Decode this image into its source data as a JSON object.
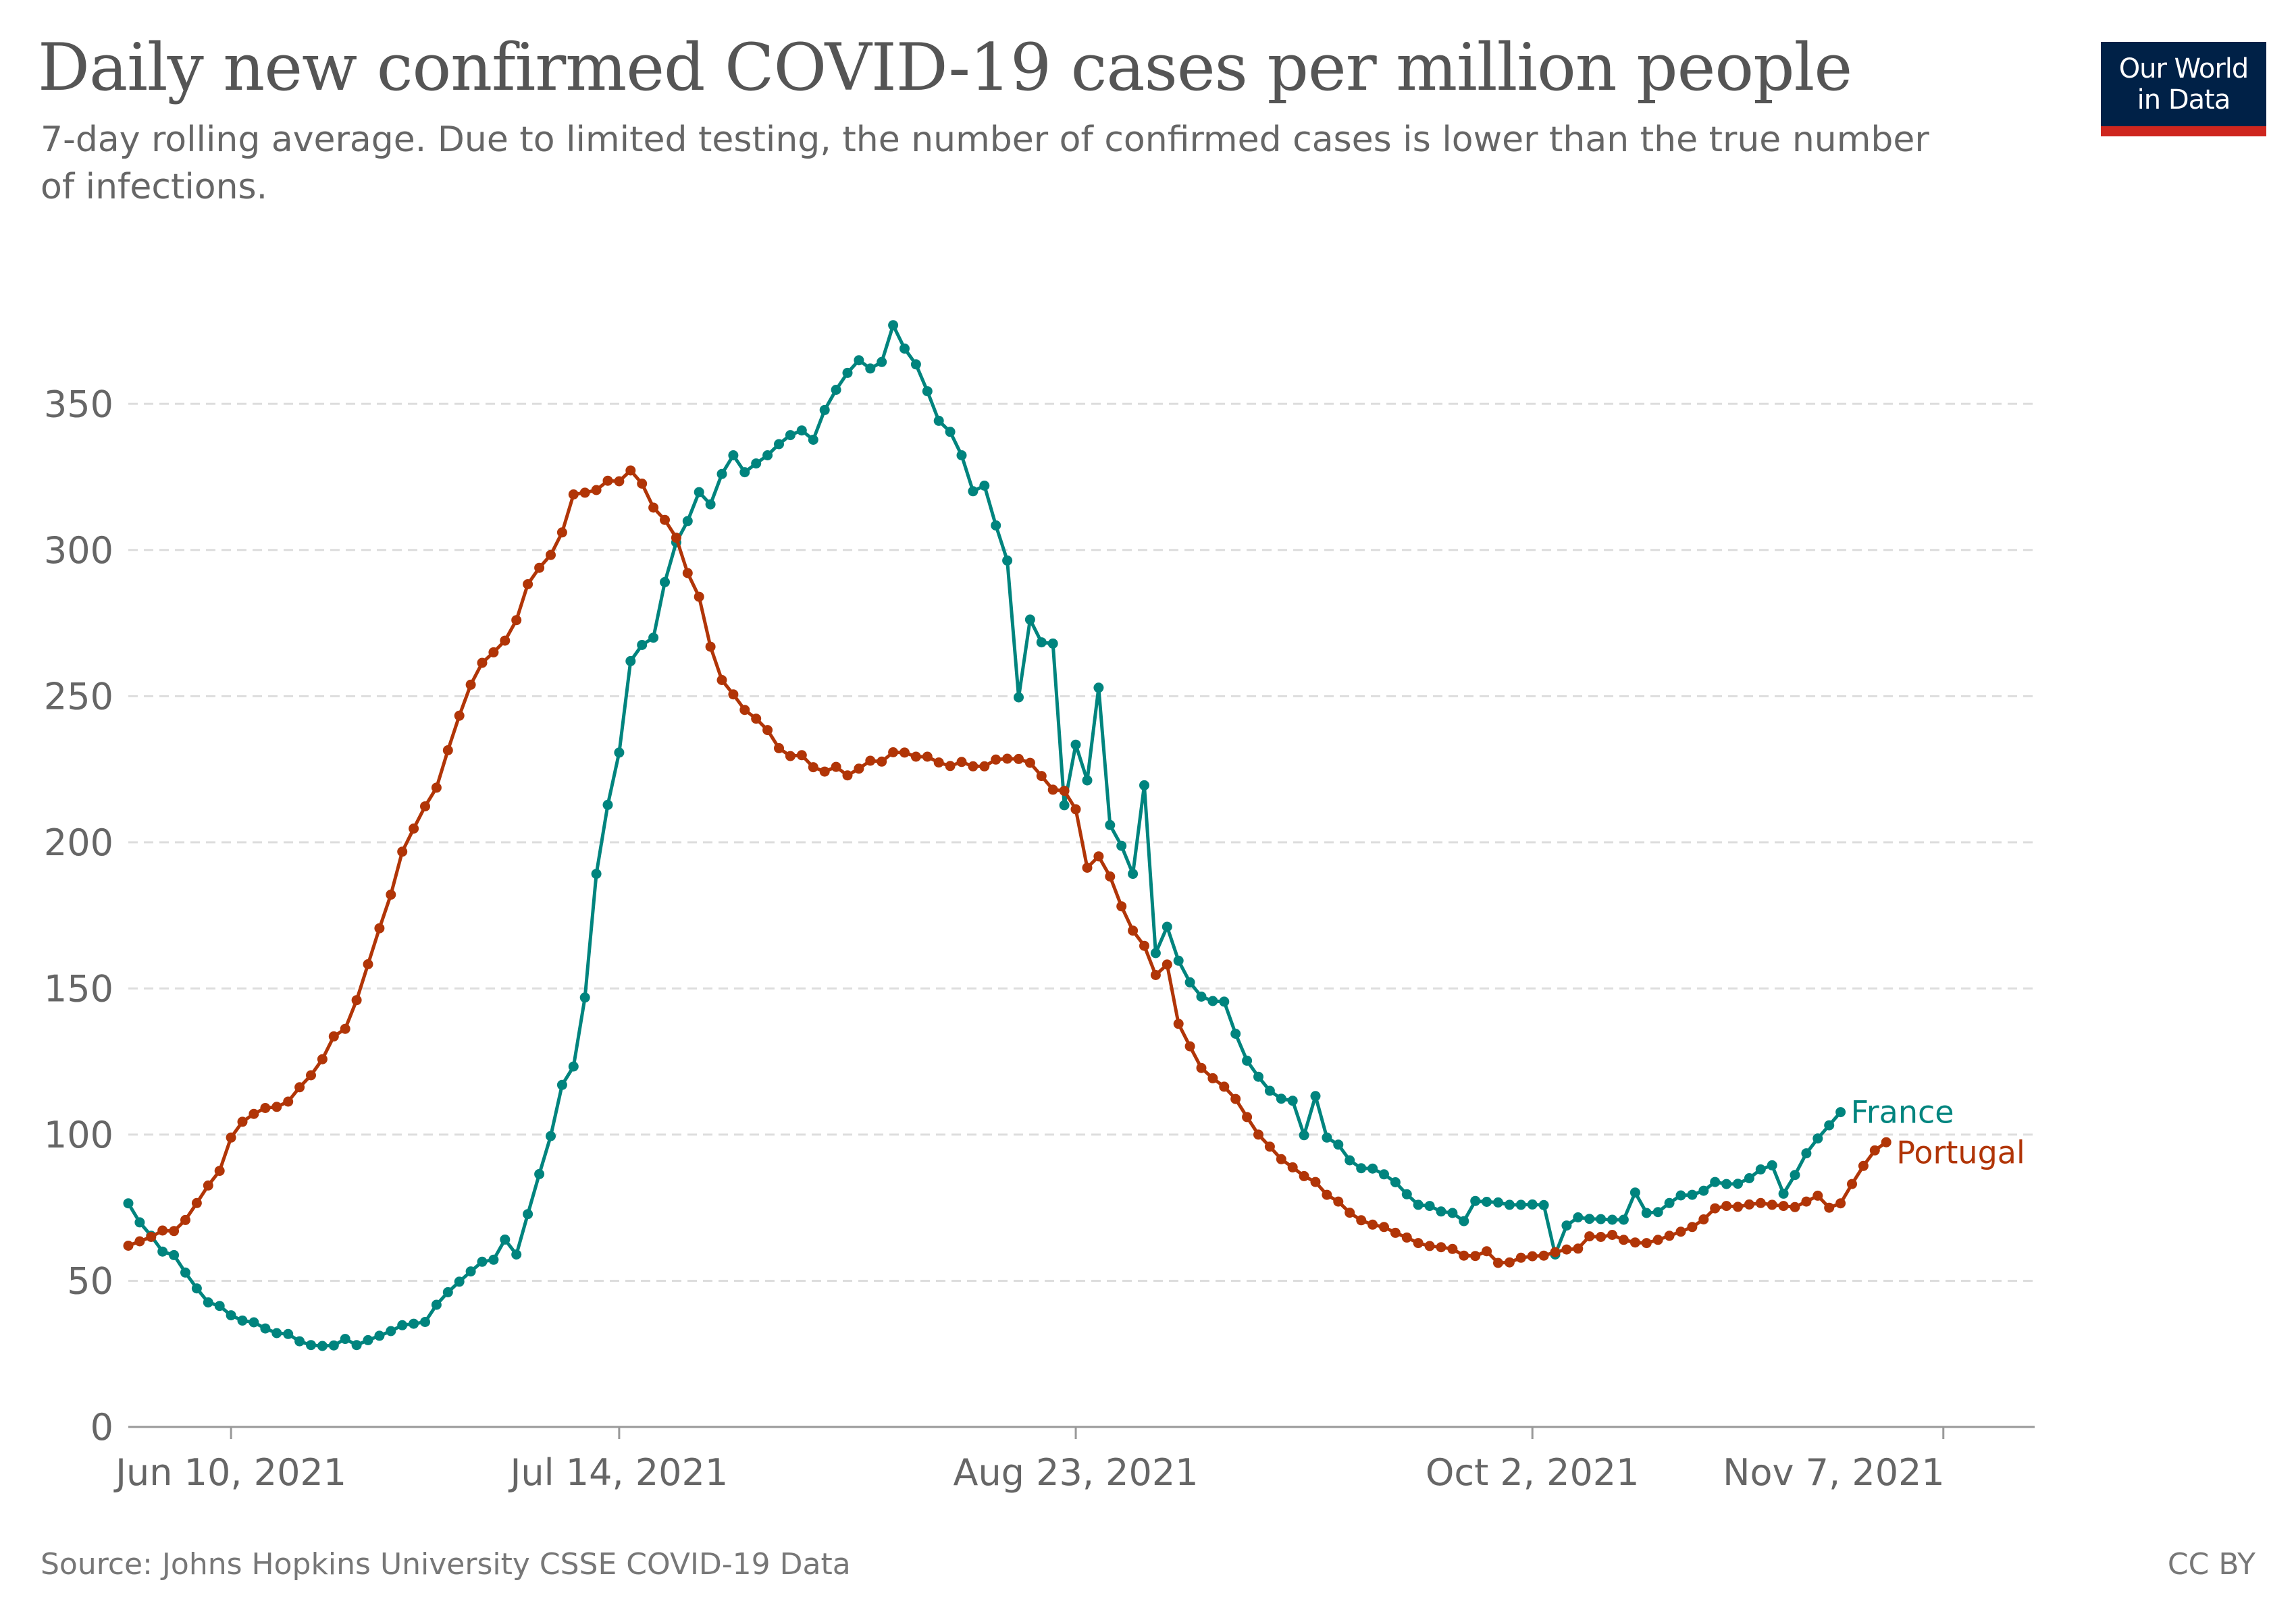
{
  "header": {
    "title": "Daily new confirmed COVID-19 cases per million people",
    "subtitle": "7-day rolling average. Due to limited testing, the number of confirmed cases is lower than the true number of infections.",
    "logo_line1": "Our World",
    "logo_line2": "in Data"
  },
  "footer": {
    "source": "Source: Johns Hopkins University CSSE COVID-19 Data",
    "license": "CC BY"
  },
  "colors": {
    "france": "#00847e",
    "portugal": "#b13507",
    "logo_background": "#002147",
    "logo_stripe": "#ce261e",
    "grid": "#dddddd"
  },
  "chart_data": {
    "type": "line",
    "title": "Daily new confirmed COVID-19 cases per million people",
    "subtitle": "7-day rolling average. Due to limited testing, the number of confirmed cases is lower than the true number of infections.",
    "x_range": [
      "2021-06-01",
      "2021-11-15"
    ],
    "x_ticks": [
      {
        "date": "2021-06-10",
        "label": "Jun 10, 2021"
      },
      {
        "date": "2021-07-14",
        "label": "Jul 14, 2021"
      },
      {
        "date": "2021-08-23",
        "label": "Aug 23, 2021"
      },
      {
        "date": "2021-10-02",
        "label": "Oct 2, 2021"
      },
      {
        "date": "2021-11-07",
        "label": "Nov 7, 2021"
      }
    ],
    "ylim": [
      0,
      375
    ],
    "y_ticks": [
      0,
      50,
      100,
      150,
      200,
      250,
      300,
      350
    ],
    "grid": "horizontal dashed",
    "legend": "line-end labels",
    "series": [
      {
        "name": "France",
        "color": "#00847e",
        "values": [
          76.5,
          70.0,
          65.4,
          60.0,
          58.8,
          52.8,
          47.4,
          42.6,
          41.4,
          38.2,
          36.4,
          35.8,
          33.7,
          32.1,
          31.8,
          29.3,
          28.0,
          27.7,
          27.9,
          30.1,
          28.0,
          29.7,
          31.2,
          32.8,
          34.8,
          35.3,
          35.9,
          41.8,
          46.1,
          49.7,
          53.2,
          56.5,
          57.2,
          64.1,
          59.0,
          72.8,
          86.5,
          99.5,
          117.0,
          123.3,
          146.9,
          189.2,
          212.8,
          230.7,
          262.0,
          267.5,
          270.0,
          289.0,
          302.6,
          309.9,
          319.8,
          315.6,
          326.0,
          332.4,
          326.6,
          329.6,
          332.4,
          336.2,
          339.3,
          340.9,
          337.7,
          347.9,
          354.8,
          360.6,
          364.9,
          362.1,
          364.3,
          376.9,
          368.9,
          363.5,
          354.3,
          344.2,
          340.4,
          332.4,
          320.1,
          322.0,
          308.4,
          296.4,
          249.6,
          276.2,
          268.4,
          268.0,
          212.7,
          233.4,
          221.2,
          252.9,
          205.9,
          198.8,
          189.2,
          219.5,
          162.1,
          171.1,
          159.5,
          152.1,
          147.2,
          145.7,
          145.5,
          134.5,
          125.3,
          119.8,
          115.0,
          112.3,
          111.6,
          99.8,
          113.2,
          99.0,
          96.6,
          91.2,
          88.5,
          88.4,
          86.4,
          83.7,
          79.6,
          76.0,
          75.6,
          73.7,
          73.2,
          70.4,
          77.3,
          77.0,
          76.8,
          76.0,
          76.0,
          76.1,
          75.9,
          59.0,
          68.9,
          71.7,
          71.2,
          71.1,
          70.9,
          70.9,
          80.2,
          73.2,
          73.5,
          76.6,
          79.2,
          79.4,
          80.8,
          83.8,
          83.1,
          83.2,
          85.1,
          88.1,
          89.5,
          79.8,
          86.2,
          93.6,
          98.7,
          103.2,
          107.7
        ]
      },
      {
        "name": "Portugal",
        "color": "#b13507",
        "values": [
          62.0,
          63.5,
          65.0,
          67.2,
          67.0,
          70.8,
          76.6,
          82.6,
          87.6,
          99.0,
          104.4,
          107.1,
          109.1,
          109.5,
          111.3,
          116.2,
          120.3,
          125.8,
          133.6,
          136.2,
          146.0,
          158.3,
          170.6,
          182.1,
          196.8,
          204.7,
          212.3,
          218.7,
          231.5,
          243.3,
          253.9,
          261.4,
          265.0,
          269.0,
          276.0,
          288.3,
          293.9,
          298.3,
          306.0,
          319.0,
          319.6,
          320.5,
          323.7,
          323.5,
          327.2,
          322.7,
          314.5,
          310.3,
          304.2,
          292.1,
          284.0,
          266.9,
          255.5,
          250.6,
          245.3,
          242.3,
          238.4,
          232.2,
          229.5,
          229.8,
          225.7,
          224.2,
          225.8,
          222.9,
          225.2,
          227.9,
          227.6,
          230.8,
          230.7,
          229.3,
          229.3,
          227.3,
          226.1,
          227.5,
          226.0,
          226.0,
          228.3,
          228.6,
          228.5,
          227.2,
          222.7,
          218.0,
          217.6,
          211.3,
          191.3,
          195.2,
          188.3,
          178.1,
          169.8,
          164.6,
          154.6,
          158.2,
          137.9,
          130.2,
          122.8,
          119.3,
          116.4,
          112.2,
          106.0,
          100.0,
          95.9,
          91.6,
          88.8,
          85.8,
          83.8,
          79.4,
          77.1,
          73.3,
          70.7,
          69.2,
          68.4,
          66.4,
          64.8,
          62.9,
          61.9,
          61.5,
          60.9,
          58.6,
          58.5,
          60.1,
          56.1,
          56.3,
          57.9,
          58.4,
          58.6,
          59.8,
          60.7,
          61.0,
          65.2,
          65.0,
          65.7,
          64.0,
          63.1,
          62.9,
          64.0,
          65.4,
          66.8,
          68.4,
          71.0,
          74.8,
          75.6,
          75.3,
          76.1,
          76.6,
          76.0,
          75.6,
          75.2,
          77.1,
          79.1,
          75.0,
          76.5,
          83.1,
          89.3,
          94.6,
          97.4
        ]
      }
    ],
    "ylabel": "",
    "xlabel": ""
  }
}
